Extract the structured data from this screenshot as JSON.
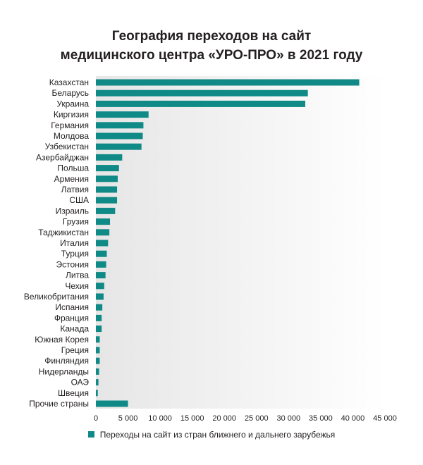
{
  "chart_data": {
    "type": "bar",
    "orientation": "horizontal",
    "title_line1": "География переходов на сайт",
    "title_line2": "медицинского центра «УРО-ПРО» в 2021 году",
    "categories": [
      "Казахстан",
      "Беларусь",
      "Украина",
      "Киргизия",
      "Германия",
      "Молдова",
      "Узбекистан",
      "Азербайджан",
      "Польша",
      "Армения",
      "Латвия",
      "США",
      "Израиль",
      "Грузия",
      "Таджикистан",
      "Италия",
      "Турция",
      "Эстония",
      "Литва",
      "Чехия",
      "Великобритания",
      "Испания",
      "Франция",
      "Канада",
      "Южная Корея",
      "Греция",
      "Финляндия",
      "Нидерланды",
      "ОАЭ",
      "Швеция",
      "Прочие страны"
    ],
    "series": [
      {
        "name": "Переходы на сайт из стран ближнего и дальнего зарубежья",
        "values": [
          41000,
          33000,
          32600,
          8200,
          7400,
          7300,
          7100,
          4100,
          3600,
          3400,
          3300,
          3300,
          3000,
          2200,
          2100,
          1900,
          1700,
          1600,
          1500,
          1300,
          1200,
          1000,
          900,
          900,
          600,
          600,
          600,
          500,
          400,
          300,
          5000
        ]
      }
    ],
    "xticks": [
      "0",
      "5 000",
      "10 000",
      "15 000",
      "20 000",
      "25 000",
      "30 000",
      "35 000",
      "40 000",
      "45 000"
    ],
    "xlim": [
      0,
      45000
    ],
    "colors": {
      "bar": "#0f8a86",
      "text": "#231f20",
      "plot_bg_start": "#e6e6e6",
      "plot_bg_end": "#ffffff"
    },
    "legend_position": "bottom",
    "grid": false
  }
}
